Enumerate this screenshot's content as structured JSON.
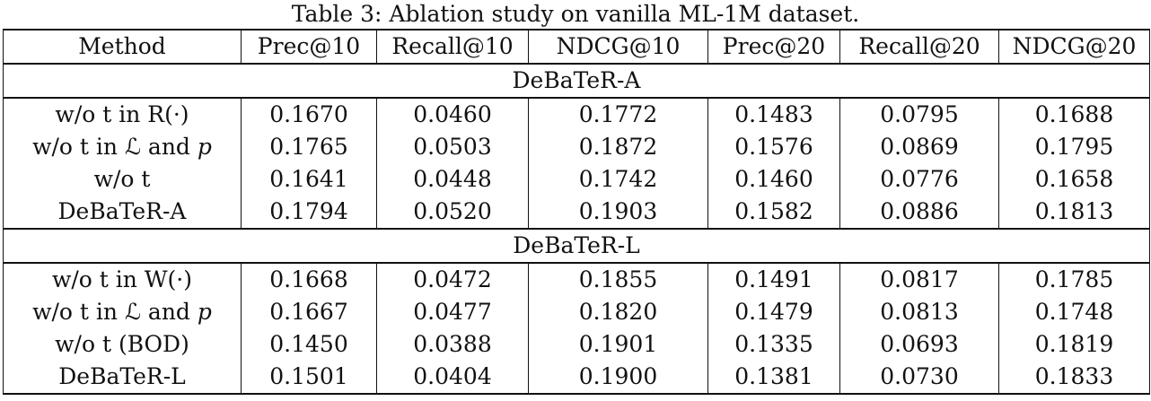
{
  "caption": "Table 3: Ablation study on vanilla ML-1M dataset.",
  "columns": [
    "Method",
    "Prec@10",
    "Recall@10",
    "NDCG@10",
    "Prec@20",
    "Recall@20",
    "NDCG@20"
  ],
  "sections": [
    {
      "title": "DeBaTeR-A",
      "rows": [
        {
          "method": "w/o t in R(·)",
          "values": [
            "0.1670",
            "0.0460",
            "0.1772",
            "0.1483",
            "0.0795",
            "0.1688"
          ]
        },
        {
          "method_parts": [
            "w/o t in ",
            "ℒ",
            " and ",
            "p"
          ],
          "values": [
            "0.1765",
            "0.0503",
            "0.1872",
            "0.1576",
            "0.0869",
            "0.1795"
          ]
        },
        {
          "method": "w/o t",
          "values": [
            "0.1641",
            "0.0448",
            "0.1742",
            "0.1460",
            "0.0776",
            "0.1658"
          ]
        },
        {
          "method": "DeBaTeR-A",
          "values": [
            "0.1794",
            "0.0520",
            "0.1903",
            "0.1582",
            "0.0886",
            "0.1813"
          ]
        }
      ]
    },
    {
      "title": "DeBaTeR-L",
      "rows": [
        {
          "method": "w/o t in W(·)",
          "values": [
            "0.1668",
            "0.0472",
            "0.1855",
            "0.1491",
            "0.0817",
            "0.1785"
          ]
        },
        {
          "method_parts": [
            "w/o t in ",
            "ℒ",
            " and ",
            "p"
          ],
          "values": [
            "0.1667",
            "0.0477",
            "0.1820",
            "0.1479",
            "0.0813",
            "0.1748"
          ]
        },
        {
          "method": "w/o t (BOD)",
          "values": [
            "0.1450",
            "0.0388",
            "0.1901",
            "0.1335",
            "0.0693",
            "0.1819"
          ]
        },
        {
          "method": "DeBaTeR-L",
          "values": [
            "0.1501",
            "0.0404",
            "0.1900",
            "0.1381",
            "0.0730",
            "0.1833"
          ]
        }
      ]
    }
  ],
  "bold_cells": [
    "0.0.0-5",
    "1.0.0,3,4",
    "1.1.1",
    "1.3.2,5"
  ]
}
